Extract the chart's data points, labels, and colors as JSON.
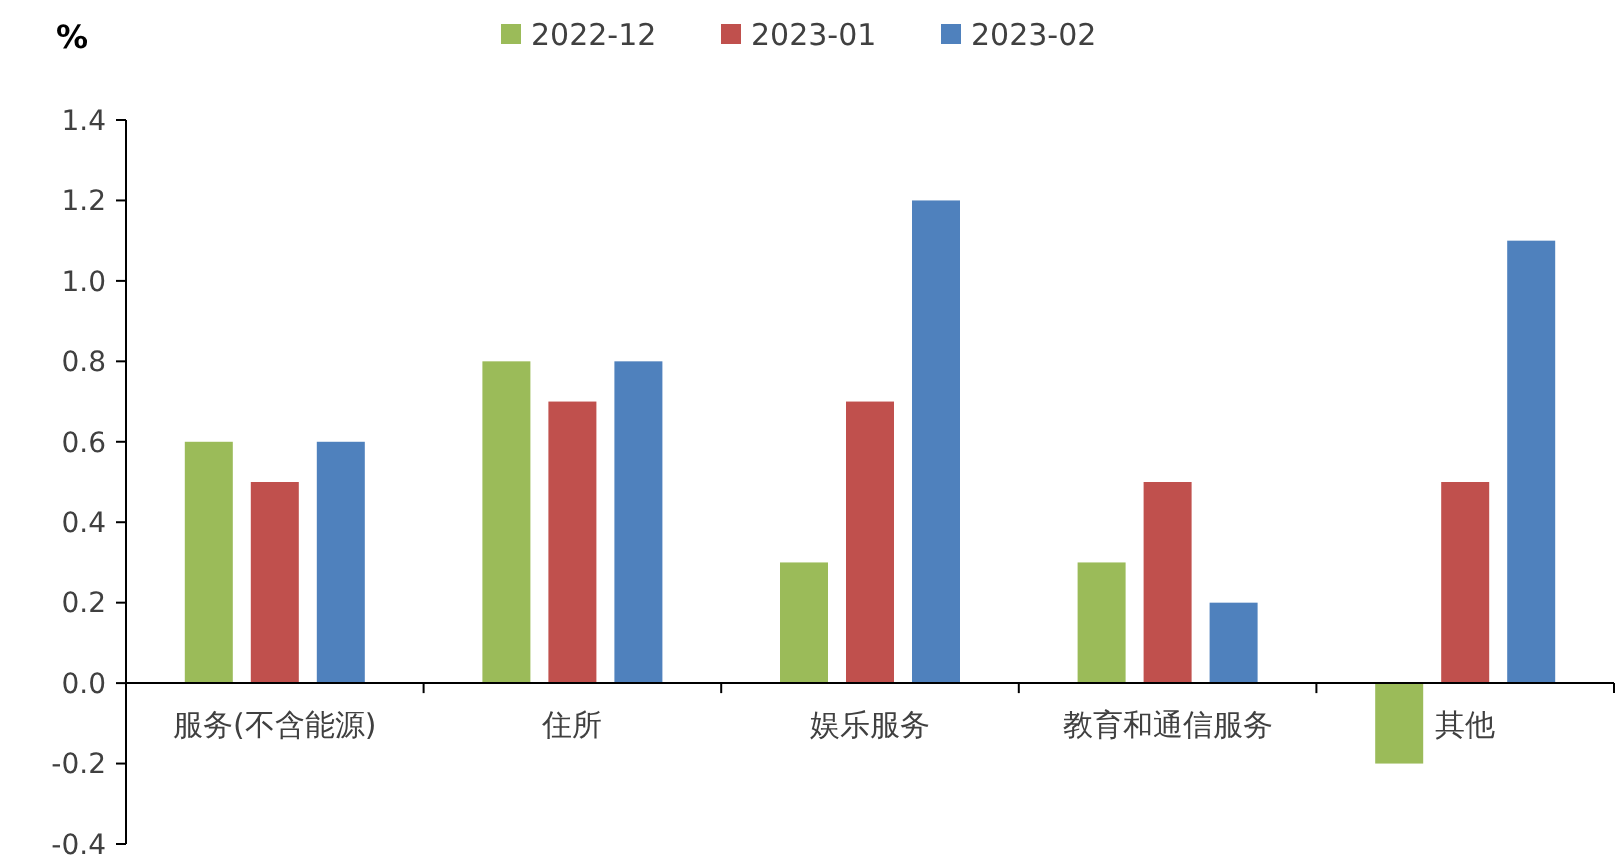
{
  "chart_data": {
    "type": "bar",
    "ylabel": "%",
    "categories": [
      "服务(不含能源)",
      "住所",
      "娱乐服务",
      "教育和通信服务",
      "其他"
    ],
    "series": [
      {
        "name": "2022-12",
        "color": "#9bbb59",
        "values": [
          0.6,
          0.8,
          0.3,
          0.3,
          -0.2
        ]
      },
      {
        "name": "2023-01",
        "color": "#c0504d",
        "values": [
          0.5,
          0.7,
          0.7,
          0.5,
          0.5
        ]
      },
      {
        "name": "2023-02",
        "color": "#4f81bd",
        "values": [
          0.6,
          0.8,
          1.2,
          0.2,
          1.1
        ]
      }
    ],
    "ylim": [
      -0.4,
      1.4
    ],
    "yticks": [
      {
        "value": -0.4,
        "label": "-0.4"
      },
      {
        "value": -0.2,
        "label": "-0.2"
      },
      {
        "value": 0,
        "label": "0.0"
      },
      {
        "value": 0.2,
        "label": "0.2"
      },
      {
        "value": 0.4,
        "label": "0.4"
      },
      {
        "value": 0.6,
        "label": "0.6"
      },
      {
        "value": 0.8,
        "label": "0.8"
      },
      {
        "value": 1,
        "label": "1.0"
      },
      {
        "value": 1.2,
        "label": "1.2"
      },
      {
        "value": 1.4,
        "label": "1.4"
      }
    ],
    "grid": false,
    "legend": "top"
  }
}
